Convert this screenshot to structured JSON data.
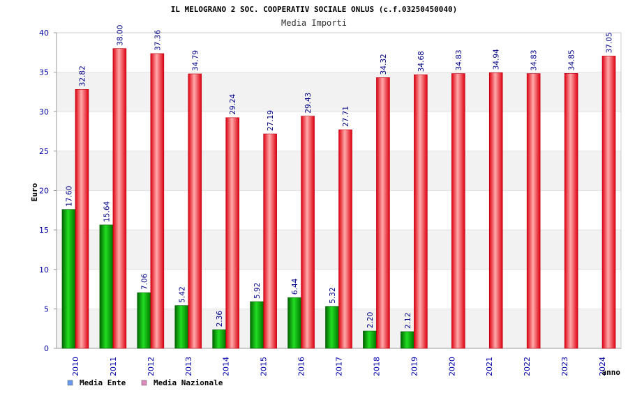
{
  "chart_data": {
    "type": "bar",
    "title": "IL MELOGRANO 2 SOC. COOPERATIV SOCIALE ONLUS (c.f.03250450040)",
    "subtitle": "Media Importi",
    "xlabel": "anno",
    "ylabel": "Euro",
    "ylim": [
      0,
      40
    ],
    "yticks": [
      "0",
      "5",
      "10",
      "15",
      "20",
      "25",
      "30",
      "35",
      "40"
    ],
    "grid": "horizontal bands",
    "legend_position": "bottom-left",
    "categories": [
      "2010",
      "2011",
      "2012",
      "2013",
      "2014",
      "2015",
      "2016",
      "2017",
      "2018",
      "2019",
      "2020",
      "2021",
      "2022",
      "2023",
      "2024"
    ],
    "series": [
      {
        "name": "Media Ente",
        "color": "#00aa00",
        "legend_color": "#6699ee",
        "values": [
          17.6,
          15.64,
          7.06,
          5.42,
          2.36,
          5.92,
          6.44,
          5.32,
          2.2,
          2.12,
          null,
          null,
          null,
          null,
          null
        ],
        "labels": [
          "17.60",
          "15.64",
          "7.06",
          "5.42",
          "2.36",
          "5.92",
          "6.44",
          "5.32",
          "2.20",
          "2.12",
          "",
          "",
          "",
          "",
          ""
        ]
      },
      {
        "name": "Media Nazionale",
        "color": "#ee2233",
        "legend_color": "#dd88bb",
        "values": [
          32.82,
          38.0,
          37.36,
          34.79,
          29.24,
          27.19,
          29.43,
          27.71,
          34.32,
          34.68,
          34.83,
          34.94,
          34.83,
          34.85,
          37.05
        ],
        "labels": [
          "32.82",
          "38.00",
          "37.36",
          "34.79",
          "29.24",
          "27.19",
          "29.43",
          "27.71",
          "34.32",
          "34.68",
          "34.83",
          "34.94",
          "34.83",
          "34.85",
          "37.05"
        ]
      }
    ]
  }
}
